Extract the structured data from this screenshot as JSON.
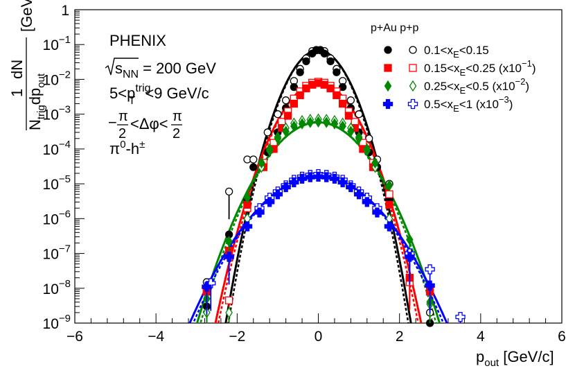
{
  "chart_data": {
    "type": "scatter",
    "experiment": "PHENIX",
    "energy_label": "= 200 GeV",
    "energy_var": "s",
    "energy_sub": "NN",
    "ptrig_lead": "5<p",
    "ptrig_sup": "trig",
    "ptrig_sub": "T",
    "ptrig_tail": "<9 GeV/c",
    "dphi_label": "<Δφ<",
    "dphi_num": "π",
    "dphi_den": "2",
    "dphi_minus": "−",
    "pair_label": "π",
    "pair_sup1": "0",
    "pair_mid": "-h",
    "pair_sup2": "±",
    "legend_header": "p+Au  p+p",
    "xlabel": "p",
    "xlabel_sub": "out",
    "xlabel_unit": " [GeV/c]",
    "ylabel_num": "1",
    "ylabel_num2": "dN",
    "ylabel_den": "N",
    "ylabel_den_sub": "trig",
    "ylabel_den_mid": "dp",
    "ylabel_den_sub2": "out",
    "ylabel_unit": "[GeV/c]",
    "ylabel_unit_sup": "-1",
    "xlim": [
      -6,
      6
    ],
    "ylim": [
      1e-09,
      1
    ],
    "yscale": "log",
    "x_ticks": [
      -6,
      -4,
      -2,
      0,
      2,
      4,
      6
    ],
    "x_tick_labels": [
      "−6",
      "−4",
      "−2",
      "0",
      "2",
      "4",
      "6"
    ],
    "y_ticks": [
      {
        "value": 1,
        "base": "1",
        "exp": ""
      },
      {
        "value": 0.1,
        "base": "10",
        "exp": "−1"
      },
      {
        "value": 0.01,
        "base": "10",
        "exp": "−2"
      },
      {
        "value": 0.001,
        "base": "10",
        "exp": "−3"
      },
      {
        "value": 0.0001,
        "base": "10",
        "exp": "−4"
      },
      {
        "value": 1e-05,
        "base": "10",
        "exp": "−5"
      },
      {
        "value": 1e-06,
        "base": "10",
        "exp": "−6"
      },
      {
        "value": 1e-07,
        "base": "10",
        "exp": "−7"
      },
      {
        "value": 1e-08,
        "base": "10",
        "exp": "−8"
      },
      {
        "value": 1e-09,
        "base": "10",
        "exp": "−9"
      }
    ],
    "series": [
      {
        "id": "bin1",
        "color": "#000000",
        "legend": {
          "a": "0.1<x",
          "sub": "E",
          "b": "<0.15",
          "scale": "",
          "scale_sup": "",
          "scale_tail": ""
        },
        "marker_pau": "filled-circle",
        "marker_pp": "open-circle",
        "amplitude": 0.068,
        "sigma": 0.38,
        "pau": [
          [
            -2.75,
            3e-09
          ],
          [
            -2.2,
            3.5e-07
          ],
          [
            -1.75,
            3.5e-06
          ],
          [
            -1.6,
            3e-05
          ],
          [
            -1.25,
            8e-05
          ],
          [
            -1.0,
            0.0003
          ],
          [
            -0.8,
            0.0015
          ],
          [
            -0.6,
            0.006
          ],
          [
            -0.45,
            0.016
          ],
          [
            -0.3,
            0.033
          ],
          [
            -0.15,
            0.055
          ],
          [
            -0.05,
            0.068
          ],
          [
            0.05,
            0.068
          ],
          [
            0.15,
            0.055
          ],
          [
            0.3,
            0.033
          ],
          [
            0.45,
            0.016
          ],
          [
            0.6,
            0.006
          ],
          [
            0.8,
            0.0015
          ],
          [
            1.0,
            0.0003
          ],
          [
            1.25,
            8e-05
          ],
          [
            1.45,
            3e-05
          ],
          [
            1.75,
            3.5e-06
          ],
          [
            2.25,
            2e-08
          ],
          [
            2.75,
            1e-09
          ]
        ],
        "pp": [
          [
            -2.75,
            1.5e-08
          ],
          [
            -2.2,
            6e-06
          ],
          [
            -1.75,
            5e-05
          ],
          [
            -1.6,
            5e-05
          ],
          [
            -1.25,
            0.0003
          ],
          [
            -1.0,
            0.001
          ],
          [
            -0.8,
            0.0025
          ],
          [
            -0.6,
            0.009
          ],
          [
            -0.45,
            0.02
          ],
          [
            -0.3,
            0.04
          ],
          [
            -0.15,
            0.065
          ],
          [
            -0.05,
            0.07
          ],
          [
            0.05,
            0.07
          ],
          [
            0.15,
            0.065
          ],
          [
            0.3,
            0.04
          ],
          [
            0.45,
            0.02
          ],
          [
            0.6,
            0.009
          ],
          [
            0.8,
            0.0025
          ],
          [
            1.0,
            0.001
          ],
          [
            1.25,
            0.0002
          ],
          [
            1.45,
            5e-05
          ],
          [
            1.75,
            1e-05
          ],
          [
            2.25,
            1e-07
          ],
          [
            2.75,
            2e-09
          ]
        ]
      },
      {
        "id": "bin2",
        "color": "#ff0000",
        "legend": {
          "a": "0.15<x",
          "sub": "E",
          "b": "<0.25 (x10",
          "scale": "",
          "scale_sup": "−1",
          "scale_tail": ")"
        },
        "marker_pau": "filled-square",
        "marker_pp": "open-square",
        "amplitude": 0.0078,
        "sigma": 0.45,
        "pau": [
          [
            -2.75,
            8e-09
          ],
          [
            -2.2,
            1.2e-07
          ],
          [
            -1.75,
            2.5e-06
          ],
          [
            -1.35,
            3e-05
          ],
          [
            -1.1,
            0.0001
          ],
          [
            -0.9,
            0.0004
          ],
          [
            -0.75,
            0.0009
          ],
          [
            -0.6,
            0.002
          ],
          [
            -0.45,
            0.0035
          ],
          [
            -0.3,
            0.0055
          ],
          [
            -0.15,
            0.007
          ],
          [
            0.0,
            0.0078
          ],
          [
            0.15,
            0.007
          ],
          [
            0.3,
            0.0055
          ],
          [
            0.45,
            0.0035
          ],
          [
            0.6,
            0.002
          ],
          [
            0.75,
            0.0009
          ],
          [
            0.9,
            0.0004
          ],
          [
            1.1,
            0.0001
          ],
          [
            1.35,
            3e-05
          ],
          [
            1.75,
            2.5e-06
          ],
          [
            2.25,
            2e-08
          ],
          [
            2.75,
            8e-09
          ]
        ],
        "pp": [
          [
            -2.75,
            8e-09
          ],
          [
            -2.2,
            4.5e-09
          ],
          [
            -1.75,
            2e-06
          ],
          [
            -1.35,
            4e-05
          ],
          [
            -1.1,
            0.00015
          ],
          [
            -0.9,
            0.0006
          ],
          [
            -0.75,
            0.0012
          ],
          [
            -0.6,
            0.0028
          ],
          [
            -0.45,
            0.0045
          ],
          [
            -0.3,
            0.0065
          ],
          [
            -0.15,
            0.008
          ],
          [
            0.0,
            0.0085
          ],
          [
            0.15,
            0.008
          ],
          [
            0.3,
            0.0065
          ],
          [
            0.45,
            0.0045
          ],
          [
            0.6,
            0.0028
          ],
          [
            0.75,
            0.0012
          ],
          [
            0.9,
            0.0006
          ],
          [
            1.1,
            0.00015
          ],
          [
            1.35,
            4e-05
          ],
          [
            1.75,
            5e-06
          ],
          [
            2.25,
            1.5e-08
          ]
        ]
      },
      {
        "id": "bin3",
        "color": "#008800",
        "legend": {
          "a": "0.25<x",
          "sub": "E",
          "b": "<0.5 (x10",
          "scale": "",
          "scale_sup": "−2",
          "scale_tail": ")"
        },
        "marker_pau": "filled-diamond",
        "marker_pp": "open-diamond",
        "amplitude": 0.00058,
        "sigma": 0.58,
        "pau": [
          [
            -2.75,
            5e-09
          ],
          [
            -2.2,
            2.2e-07
          ],
          [
            -1.75,
            4e-06
          ],
          [
            -1.4,
            4e-05
          ],
          [
            -1.2,
            0.0001
          ],
          [
            -1.0,
            0.0002
          ],
          [
            -0.8,
            0.00032
          ],
          [
            -0.6,
            0.00045
          ],
          [
            -0.4,
            0.00053
          ],
          [
            -0.2,
            0.00058
          ],
          [
            0.0,
            0.0006
          ],
          [
            0.2,
            0.00058
          ],
          [
            0.4,
            0.00053
          ],
          [
            0.6,
            0.00045
          ],
          [
            0.8,
            0.00032
          ],
          [
            1.0,
            0.0002
          ],
          [
            1.2,
            0.0001
          ],
          [
            1.4,
            4e-05
          ],
          [
            1.75,
            9e-06
          ],
          [
            2.25,
            2.5e-07
          ],
          [
            2.75,
            4e-09
          ]
        ],
        "pp": [
          [
            -2.75,
            2e-09
          ],
          [
            -2.2,
            2e-09
          ],
          [
            -1.75,
            1e-06
          ],
          [
            -1.4,
            3e-05
          ],
          [
            -1.2,
            9e-05
          ],
          [
            -1.0,
            0.00022
          ],
          [
            -0.8,
            0.0004
          ],
          [
            -0.6,
            0.00055
          ],
          [
            -0.4,
            0.00065
          ],
          [
            -0.2,
            0.0007
          ],
          [
            0.0,
            0.00072
          ],
          [
            0.2,
            0.0007
          ],
          [
            0.4,
            0.00065
          ],
          [
            0.6,
            0.00055
          ],
          [
            0.8,
            0.0004
          ],
          [
            1.0,
            0.00022
          ],
          [
            1.2,
            9e-05
          ],
          [
            1.4,
            3e-05
          ],
          [
            1.75,
            1e-06
          ],
          [
            2.25,
            1e-07
          ],
          [
            2.75,
            3.5e-09
          ]
        ]
      },
      {
        "id": "bin4",
        "color": "#0000ff",
        "legend": {
          "a": "0.5<x",
          "sub": "E",
          "b": "<1 (x10",
          "scale": "",
          "scale_sup": "−3",
          "scale_tail": ")"
        },
        "marker_pau": "filled-cross",
        "marker_pp": "open-cross",
        "amplitude": 1.6e-05,
        "sigma": 0.72,
        "pau": [
          [
            -2.75,
            1.1e-08
          ],
          [
            -2.2,
            8e-08
          ],
          [
            -1.75,
            6e-07
          ],
          [
            -1.45,
            1.5e-06
          ],
          [
            -1.2,
            3e-06
          ],
          [
            -1.0,
            5e-06
          ],
          [
            -0.8,
            8e-06
          ],
          [
            -0.6,
            1.1e-05
          ],
          [
            -0.4,
            1.4e-05
          ],
          [
            -0.2,
            1.55e-05
          ],
          [
            0.0,
            1.6e-05
          ],
          [
            0.2,
            1.55e-05
          ],
          [
            0.4,
            1.4e-05
          ],
          [
            0.6,
            1.1e-05
          ],
          [
            0.8,
            8e-06
          ],
          [
            1.0,
            5e-06
          ],
          [
            1.2,
            3e-06
          ],
          [
            1.45,
            1.5e-06
          ],
          [
            1.75,
            6e-07
          ],
          [
            2.25,
            8e-08
          ],
          [
            2.75,
            1.2e-08
          ]
        ],
        "pp": [
          [
            -2.65,
            1.4e-08
          ],
          [
            -2.2,
            8e-08
          ],
          [
            -1.75,
            6e-07
          ],
          [
            -1.45,
            2e-06
          ],
          [
            -1.2,
            4e-06
          ],
          [
            -1.0,
            6e-06
          ],
          [
            -0.8,
            9e-06
          ],
          [
            -0.6,
            1.3e-05
          ],
          [
            -0.4,
            1.6e-05
          ],
          [
            -0.2,
            1.8e-05
          ],
          [
            0.0,
            1.9e-05
          ],
          [
            0.2,
            1.8e-05
          ],
          [
            0.4,
            1.6e-05
          ],
          [
            0.6,
            1.3e-05
          ],
          [
            0.8,
            9e-06
          ],
          [
            1.0,
            6e-06
          ],
          [
            1.2,
            4e-06
          ],
          [
            1.45,
            2e-06
          ],
          [
            1.75,
            6e-07
          ],
          [
            2.25,
            1e-07
          ],
          [
            2.75,
            3.5e-08
          ],
          [
            3.5,
            1.5e-09
          ]
        ]
      }
    ]
  }
}
